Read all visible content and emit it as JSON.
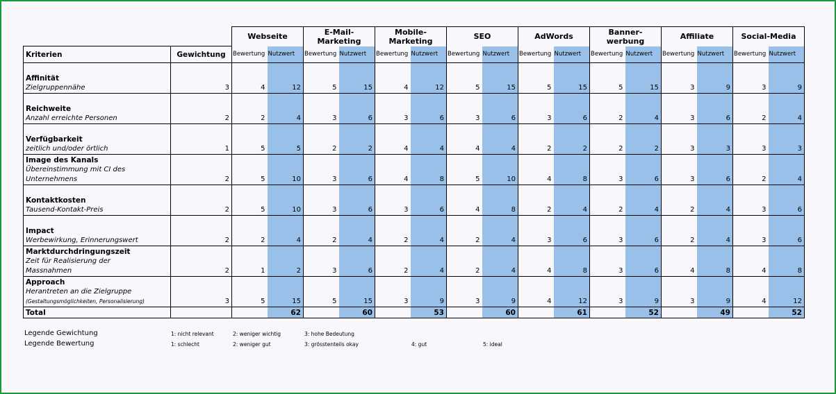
{
  "header": {
    "kriterien": "Kriterien",
    "gewichtung": "Gewichtung",
    "bewertung": "Bewertung",
    "nutzwert": "Nutzwert"
  },
  "channels": [
    {
      "line1": "Webseite",
      "line2": ""
    },
    {
      "line1": "E-Mail-",
      "line2": "Marketing"
    },
    {
      "line1": "Mobile-",
      "line2": "Marketing"
    },
    {
      "line1": "SEO",
      "line2": ""
    },
    {
      "line1": "AdWords",
      "line2": ""
    },
    {
      "line1": "Banner-",
      "line2": "werbung"
    },
    {
      "line1": "Affiliate",
      "line2": ""
    },
    {
      "line1": "Social-Media",
      "line2": ""
    }
  ],
  "rows": [
    {
      "name": "Affinität",
      "desc1": "Zielgruppennähe",
      "desc2": "",
      "small": "",
      "weight": "3",
      "values": [
        [
          "4",
          "12"
        ],
        [
          "5",
          "15"
        ],
        [
          "4",
          "12"
        ],
        [
          "5",
          "15"
        ],
        [
          "5",
          "15"
        ],
        [
          "5",
          "15"
        ],
        [
          "3",
          "9"
        ],
        [
          "3",
          "9"
        ]
      ]
    },
    {
      "name": "Reichweite",
      "desc1": "Anzahl erreichte Personen",
      "desc2": "",
      "small": "",
      "weight": "2",
      "values": [
        [
          "2",
          "4"
        ],
        [
          "3",
          "6"
        ],
        [
          "3",
          "6"
        ],
        [
          "3",
          "6"
        ],
        [
          "3",
          "6"
        ],
        [
          "2",
          "4"
        ],
        [
          "3",
          "6"
        ],
        [
          "2",
          "4"
        ]
      ]
    },
    {
      "name": "Verfügbarkeit",
      "desc1": "zeitlich und/oder örtlich",
      "desc2": "",
      "small": "",
      "weight": "1",
      "values": [
        [
          "5",
          "5"
        ],
        [
          "2",
          "2"
        ],
        [
          "4",
          "4"
        ],
        [
          "4",
          "4"
        ],
        [
          "2",
          "2"
        ],
        [
          "2",
          "2"
        ],
        [
          "3",
          "3"
        ],
        [
          "3",
          "3"
        ]
      ]
    },
    {
      "name": "Image des Kanals",
      "desc1": "Übereinstimmung mit CI des",
      "desc2": "Unternehmens",
      "small": "",
      "weight": "2",
      "values": [
        [
          "5",
          "10"
        ],
        [
          "3",
          "6"
        ],
        [
          "4",
          "8"
        ],
        [
          "5",
          "10"
        ],
        [
          "4",
          "8"
        ],
        [
          "3",
          "6"
        ],
        [
          "3",
          "6"
        ],
        [
          "2",
          "4"
        ]
      ]
    },
    {
      "name": "Kontaktkosten",
      "desc1": "Tausend-Kontakt-Preis",
      "desc2": "",
      "small": "",
      "weight": "2",
      "values": [
        [
          "5",
          "10"
        ],
        [
          "3",
          "6"
        ],
        [
          "3",
          "6"
        ],
        [
          "4",
          "8"
        ],
        [
          "2",
          "4"
        ],
        [
          "2",
          "4"
        ],
        [
          "2",
          "4"
        ],
        [
          "3",
          "6"
        ]
      ]
    },
    {
      "name": "Impact",
      "desc1": "Werbewirkung, Erinnerungswert",
      "desc2": "",
      "small": "",
      "weight": "2",
      "values": [
        [
          "2",
          "4"
        ],
        [
          "2",
          "4"
        ],
        [
          "2",
          "4"
        ],
        [
          "2",
          "4"
        ],
        [
          "3",
          "6"
        ],
        [
          "3",
          "6"
        ],
        [
          "2",
          "4"
        ],
        [
          "3",
          "6"
        ]
      ]
    },
    {
      "name": "Marktdurchdringungszeit",
      "desc1": "Zeit für Realisierung der",
      "desc2": "Massnahmen",
      "small": "",
      "weight": "2",
      "values": [
        [
          "1",
          "2"
        ],
        [
          "3",
          "6"
        ],
        [
          "2",
          "4"
        ],
        [
          "2",
          "4"
        ],
        [
          "4",
          "8"
        ],
        [
          "3",
          "6"
        ],
        [
          "4",
          "8"
        ],
        [
          "4",
          "8"
        ]
      ]
    },
    {
      "name": "Approach",
      "desc1": "Herantreten an die Zielgruppe",
      "desc2": "",
      "small": "(Gestaltungsmöglichkeiten, Personalisierung)",
      "weight": "3",
      "values": [
        [
          "5",
          "15"
        ],
        [
          "5",
          "15"
        ],
        [
          "3",
          "9"
        ],
        [
          "3",
          "9"
        ],
        [
          "4",
          "12"
        ],
        [
          "3",
          "9"
        ],
        [
          "3",
          "9"
        ],
        [
          "4",
          "12"
        ]
      ]
    }
  ],
  "total": {
    "label": "Total",
    "values": [
      "62",
      "60",
      "53",
      "60",
      "61",
      "52",
      "49",
      "52"
    ]
  },
  "legend": {
    "gewichtung_label": "Legende Gewichtung",
    "gewichtung": [
      "1: nicht relevant",
      "2: weniger wichtig",
      "3: hohe Bedeutung"
    ],
    "bewertung_label": "Legende Bewertung",
    "bewertung": [
      "1: schlecht",
      "2: weniger gut",
      "3: grösstenteils okay",
      "4: gut",
      "5: ideal"
    ]
  },
  "colors": {
    "nutzwert_fill": "#99c0e9",
    "frame": "#159a3c",
    "background": "#f8f7fb"
  }
}
